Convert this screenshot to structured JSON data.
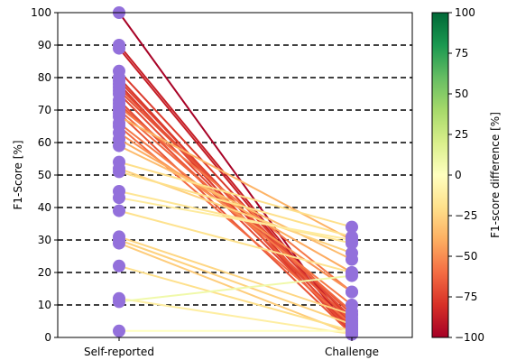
{
  "chart_data": {
    "type": "line",
    "categories": [
      "Self-reported",
      "Challenge"
    ],
    "ylabel": "F1-Score [%]",
    "ylim": [
      0,
      100
    ],
    "yticks": [
      0,
      10,
      20,
      30,
      40,
      50,
      60,
      70,
      80,
      90,
      100
    ],
    "grid": "horizontal dashed",
    "colorbar": {
      "label": "F1-score difference [%]",
      "range": [
        -100,
        100
      ],
      "ticks": [
        100,
        75,
        50,
        25,
        0,
        -25,
        -50,
        -75,
        -100
      ],
      "colormap": "RdYlGn"
    },
    "marker_color": "#9370db",
    "pairs": [
      [
        100,
        1
      ],
      [
        89,
        2
      ],
      [
        90,
        3
      ],
      [
        82,
        5
      ],
      [
        80,
        2
      ],
      [
        79,
        4
      ],
      [
        78,
        1
      ],
      [
        77,
        6
      ],
      [
        76,
        7
      ],
      [
        75,
        3
      ],
      [
        73,
        2
      ],
      [
        72,
        5
      ],
      [
        71,
        14
      ],
      [
        70,
        8
      ],
      [
        69,
        1
      ],
      [
        68,
        30
      ],
      [
        66,
        10
      ],
      [
        65,
        4
      ],
      [
        63,
        14
      ],
      [
        61,
        20
      ],
      [
        59,
        24
      ],
      [
        54,
        34
      ],
      [
        52,
        26
      ],
      [
        51,
        31
      ],
      [
        45,
        29
      ],
      [
        43,
        30
      ],
      [
        39,
        20
      ],
      [
        31,
        7
      ],
      [
        30,
        4
      ],
      [
        29,
        1
      ],
      [
        22,
        2
      ],
      [
        12,
        1
      ],
      [
        11,
        19
      ],
      [
        2,
        2
      ]
    ]
  }
}
